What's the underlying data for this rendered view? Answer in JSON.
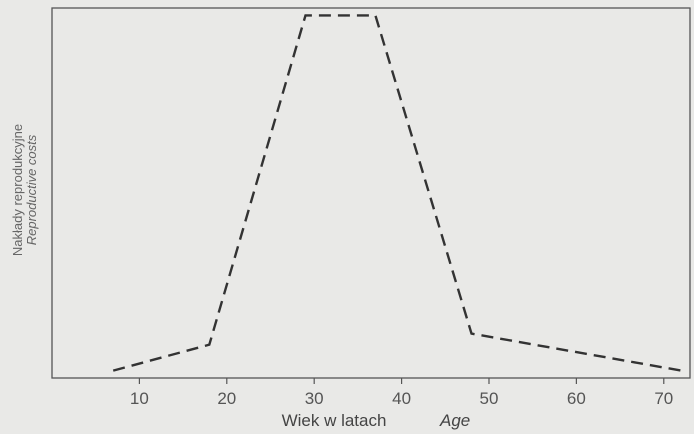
{
  "chart_data": {
    "type": "line",
    "line_style": "dashed",
    "x": [
      7,
      18,
      29,
      37,
      48,
      72
    ],
    "y": [
      0.02,
      0.09,
      0.98,
      0.98,
      0.12,
      0.02
    ],
    "xticks": [
      10,
      20,
      30,
      40,
      50,
      60,
      70
    ],
    "xlim": [
      0,
      73
    ],
    "ylim": [
      0,
      1
    ],
    "xlabel": "Wiek w latach",
    "xlabel_en": "Age",
    "ylabel": "Nakłady reprodukcyjne",
    "ylabel_en": "Reproductive costs",
    "grid": false,
    "colors": {
      "line": "#333333",
      "axes": "#555555",
      "background": "#e9e9e7"
    }
  }
}
